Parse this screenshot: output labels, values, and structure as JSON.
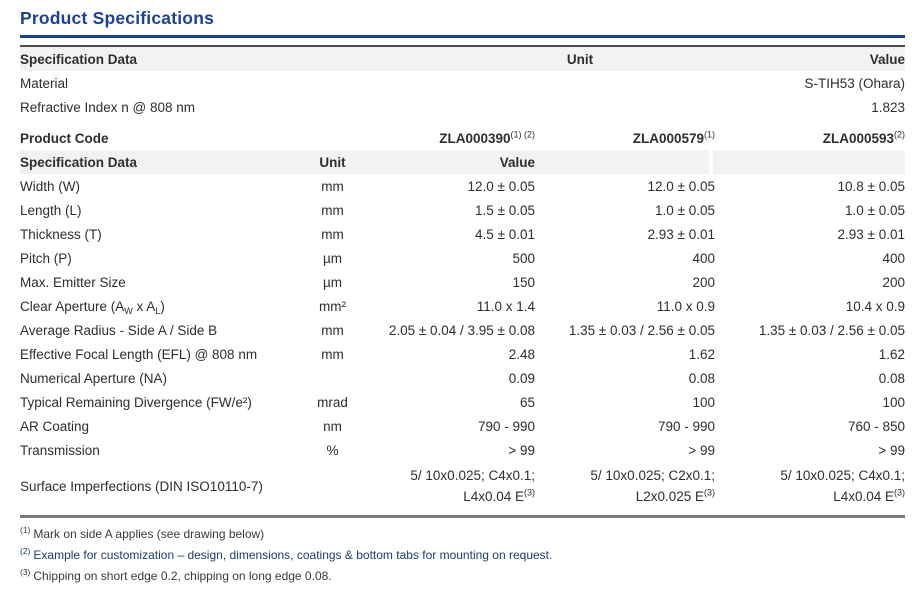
{
  "colors": {
    "accent": "#1c4193",
    "text": "#2e2e2d",
    "header_bg": "#f2f2f2",
    "border_top": "#4d4d4d",
    "border_bottom": "#7c7c7c",
    "fn_text": "#3a3a39",
    "fn_accent": "#1d3c6e"
  },
  "title": "Product Specifications",
  "table1": {
    "header": {
      "spec": "Specification Data",
      "unit": "Unit",
      "value": "Value"
    },
    "rows": [
      {
        "label": "Material",
        "value": "S-TIH53 (Ohara)"
      },
      {
        "label": "Refractive Index n @ 808 nm",
        "value": "1.823"
      }
    ]
  },
  "product_code_row": {
    "label": "Product Code",
    "codes": [
      {
        "text": "ZLA000390",
        "sup": "(1) (2)"
      },
      {
        "text": "ZLA000579",
        "sup": "(1)"
      },
      {
        "text": "ZLA000593",
        "sup": "(2)"
      }
    ]
  },
  "table2": {
    "header": {
      "spec": "Specification Data",
      "unit": "Unit",
      "value": "Value"
    },
    "rows": [
      {
        "label": "Width (W)",
        "unit": "mm",
        "values": [
          "12.0 ± 0.05",
          "12.0 ± 0.05",
          "10.8 ± 0.05"
        ]
      },
      {
        "label": "Length (L)",
        "unit": "mm",
        "values": [
          "1.5 ± 0.05",
          "1.0 ± 0.05",
          "1.0 ± 0.05"
        ]
      },
      {
        "label": "Thickness (T)",
        "unit": "mm",
        "values": [
          "4.5 ± 0.01",
          "2.93 ± 0.01",
          "2.93 ± 0.01"
        ]
      },
      {
        "label": "Pitch (P)",
        "unit": "µm",
        "values": [
          "500",
          "400",
          "400"
        ]
      },
      {
        "label": "Max. Emitter Size",
        "unit": "µm",
        "values": [
          "150",
          "200",
          "200"
        ]
      },
      {
        "label_html": "Clear Aperture (A<sub>W</sub> x A<sub>L</sub>)",
        "unit": "mm²",
        "values": [
          "11.0 x 1.4",
          "11.0 x 0.9",
          "10.4 x 0.9"
        ]
      },
      {
        "label": "Average Radius - Side A / Side B",
        "unit": "mm",
        "values": [
          "2.05 ± 0.04 / 3.95 ± 0.08",
          "1.35 ± 0.03 / 2.56 ± 0.05",
          "1.35 ± 0.03 / 2.56 ± 0.05"
        ]
      },
      {
        "label": "Effective Focal Length (EFL) @ 808 nm",
        "unit": "mm",
        "values": [
          "2.48",
          "1.62",
          "1.62"
        ]
      },
      {
        "label": "Numerical Aperture (NA)",
        "unit": "",
        "values": [
          "0.09",
          "0.08",
          "0.08"
        ]
      },
      {
        "label": "Typical Remaining Divergence (FW/e²)",
        "unit": "mrad",
        "values": [
          "65",
          "100",
          "100"
        ]
      },
      {
        "label": "AR Coating",
        "unit": "nm",
        "values": [
          "790 - 990",
          "790 - 990",
          "760 - 850"
        ]
      },
      {
        "label": "Transmission",
        "unit": "%",
        "values": [
          "> 99",
          "> 99",
          "> 99"
        ]
      }
    ],
    "surface_row": {
      "label": "Surface Imperfections (DIN ISO10110-7)",
      "unit": "",
      "values": [
        {
          "line1": "5/ 10x0.025; C4x0.1;",
          "line2": "L4x0.04 E",
          "sup": "(3)"
        },
        {
          "line1": "5/ 10x0.025; C2x0.1;",
          "line2": "L2x0.025 E",
          "sup": "(3)"
        },
        {
          "line1": "5/ 10x0.025; C4x0.1;",
          "line2": "L4x0.04 E",
          "sup": "(3)"
        }
      ]
    }
  },
  "footnotes": [
    {
      "sup": "(1)",
      "text": "Mark on side A applies (see drawing below)"
    },
    {
      "sup": "(2)",
      "text": "Example for customization – design, dimensions, coatings & bottom tabs for mounting on request."
    },
    {
      "sup": "(3)",
      "text": "Chipping on short edge 0.2, chipping on long edge 0.08."
    }
  ]
}
